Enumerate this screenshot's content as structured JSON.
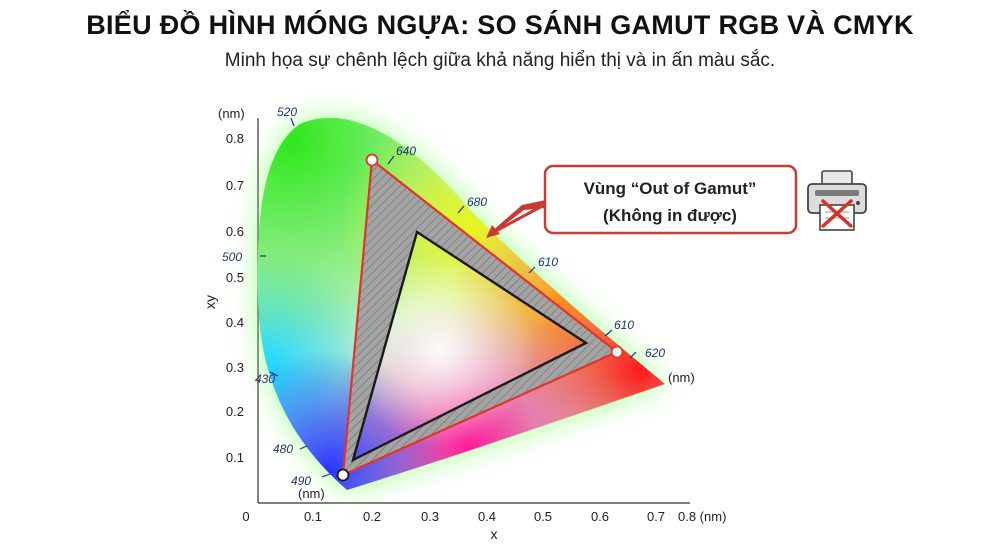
{
  "title": "BIỂU ĐỒ HÌNH MÓNG NGỰA: SO SÁNH GAMUT RGB VÀ CMYK",
  "subtitle": "Minh họa sự chênh lệch giữa khả năng hiển thị và in ấn màu sắc.",
  "axes": {
    "x_label": "x",
    "y_label": "xy",
    "x_ticks": [
      "0",
      "0.1",
      "0.2",
      "0.3",
      "0.4",
      "0.5",
      "0.6",
      "0.7",
      "0.8 (nm)"
    ],
    "y_ticks": [
      "0.1",
      "0.2",
      "0.3",
      "0.4",
      "0.5",
      "0.6",
      "0.7",
      "0.8"
    ],
    "y_unit": "(nm)",
    "origin_unit": "(nm)",
    "right_unit": "(nm)"
  },
  "wavelength_labels": [
    "520",
    "640",
    "680",
    "500",
    "610",
    "610",
    "620",
    "430",
    "480",
    "490"
  ],
  "callout": {
    "line1": "Vùng “Out of Gamut”",
    "line2": "(Không in được)"
  },
  "icons": {
    "printer": "printer-icon",
    "no_print": "red-x-icon"
  },
  "colors": {
    "outer_triangle": "#e0352b",
    "inner_triangle": "#1a1a1a",
    "hatch_fill": "#9a9a9a",
    "callout_border": "#c83a32",
    "x_mark": "#d9302a"
  }
}
